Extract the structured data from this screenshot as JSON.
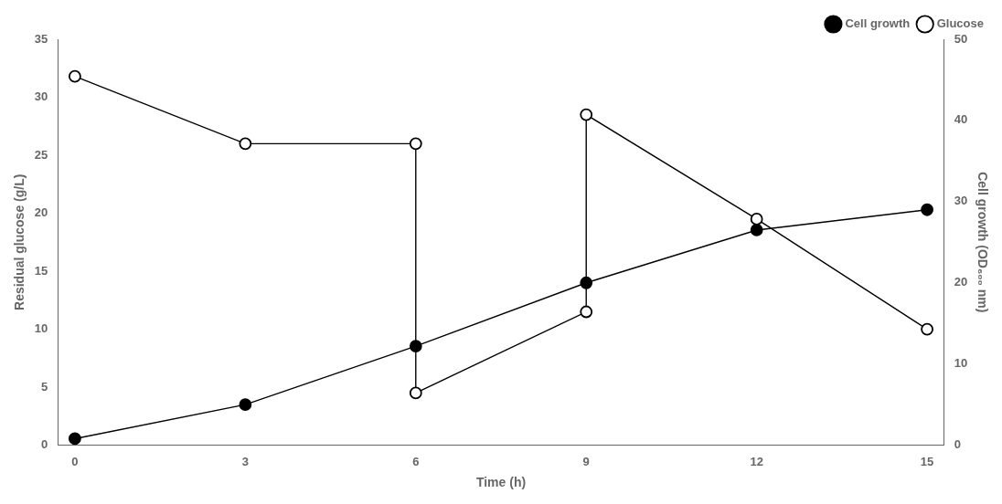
{
  "chart_data": {
    "type": "line",
    "xlabel": "Time (h)",
    "ylabel": "Residual glucose (g/L)",
    "y2label": "Cell growth (OD₆₀₀ nm)",
    "xlim": [
      -0.3,
      15.3
    ],
    "xticks": [
      0,
      3,
      6,
      9,
      12,
      15
    ],
    "ylim": [
      0,
      35
    ],
    "yticks": [
      0,
      5,
      10,
      15,
      20,
      25,
      30,
      35
    ],
    "y2lim": [
      0,
      50
    ],
    "y2ticks": [
      0,
      10,
      20,
      30,
      40,
      50
    ],
    "grid": false,
    "legend": "upper right",
    "series": [
      {
        "name": "Cell growth",
        "axis": "y2",
        "color": "#000000",
        "marker": "filled circle",
        "x": [
          0,
          3,
          6,
          9,
          12,
          15
        ],
        "values": [
          0.8,
          5.0,
          12.2,
          20.0,
          26.5,
          29.0
        ]
      },
      {
        "name": "Glucose",
        "axis": "y",
        "color": "#000000",
        "marker": "open circle",
        "x": [
          0,
          3,
          6,
          6,
          9,
          9,
          12,
          15
        ],
        "values": [
          31.8,
          26.0,
          26.0,
          4.5,
          11.5,
          28.5,
          19.5,
          10.0
        ]
      }
    ]
  }
}
